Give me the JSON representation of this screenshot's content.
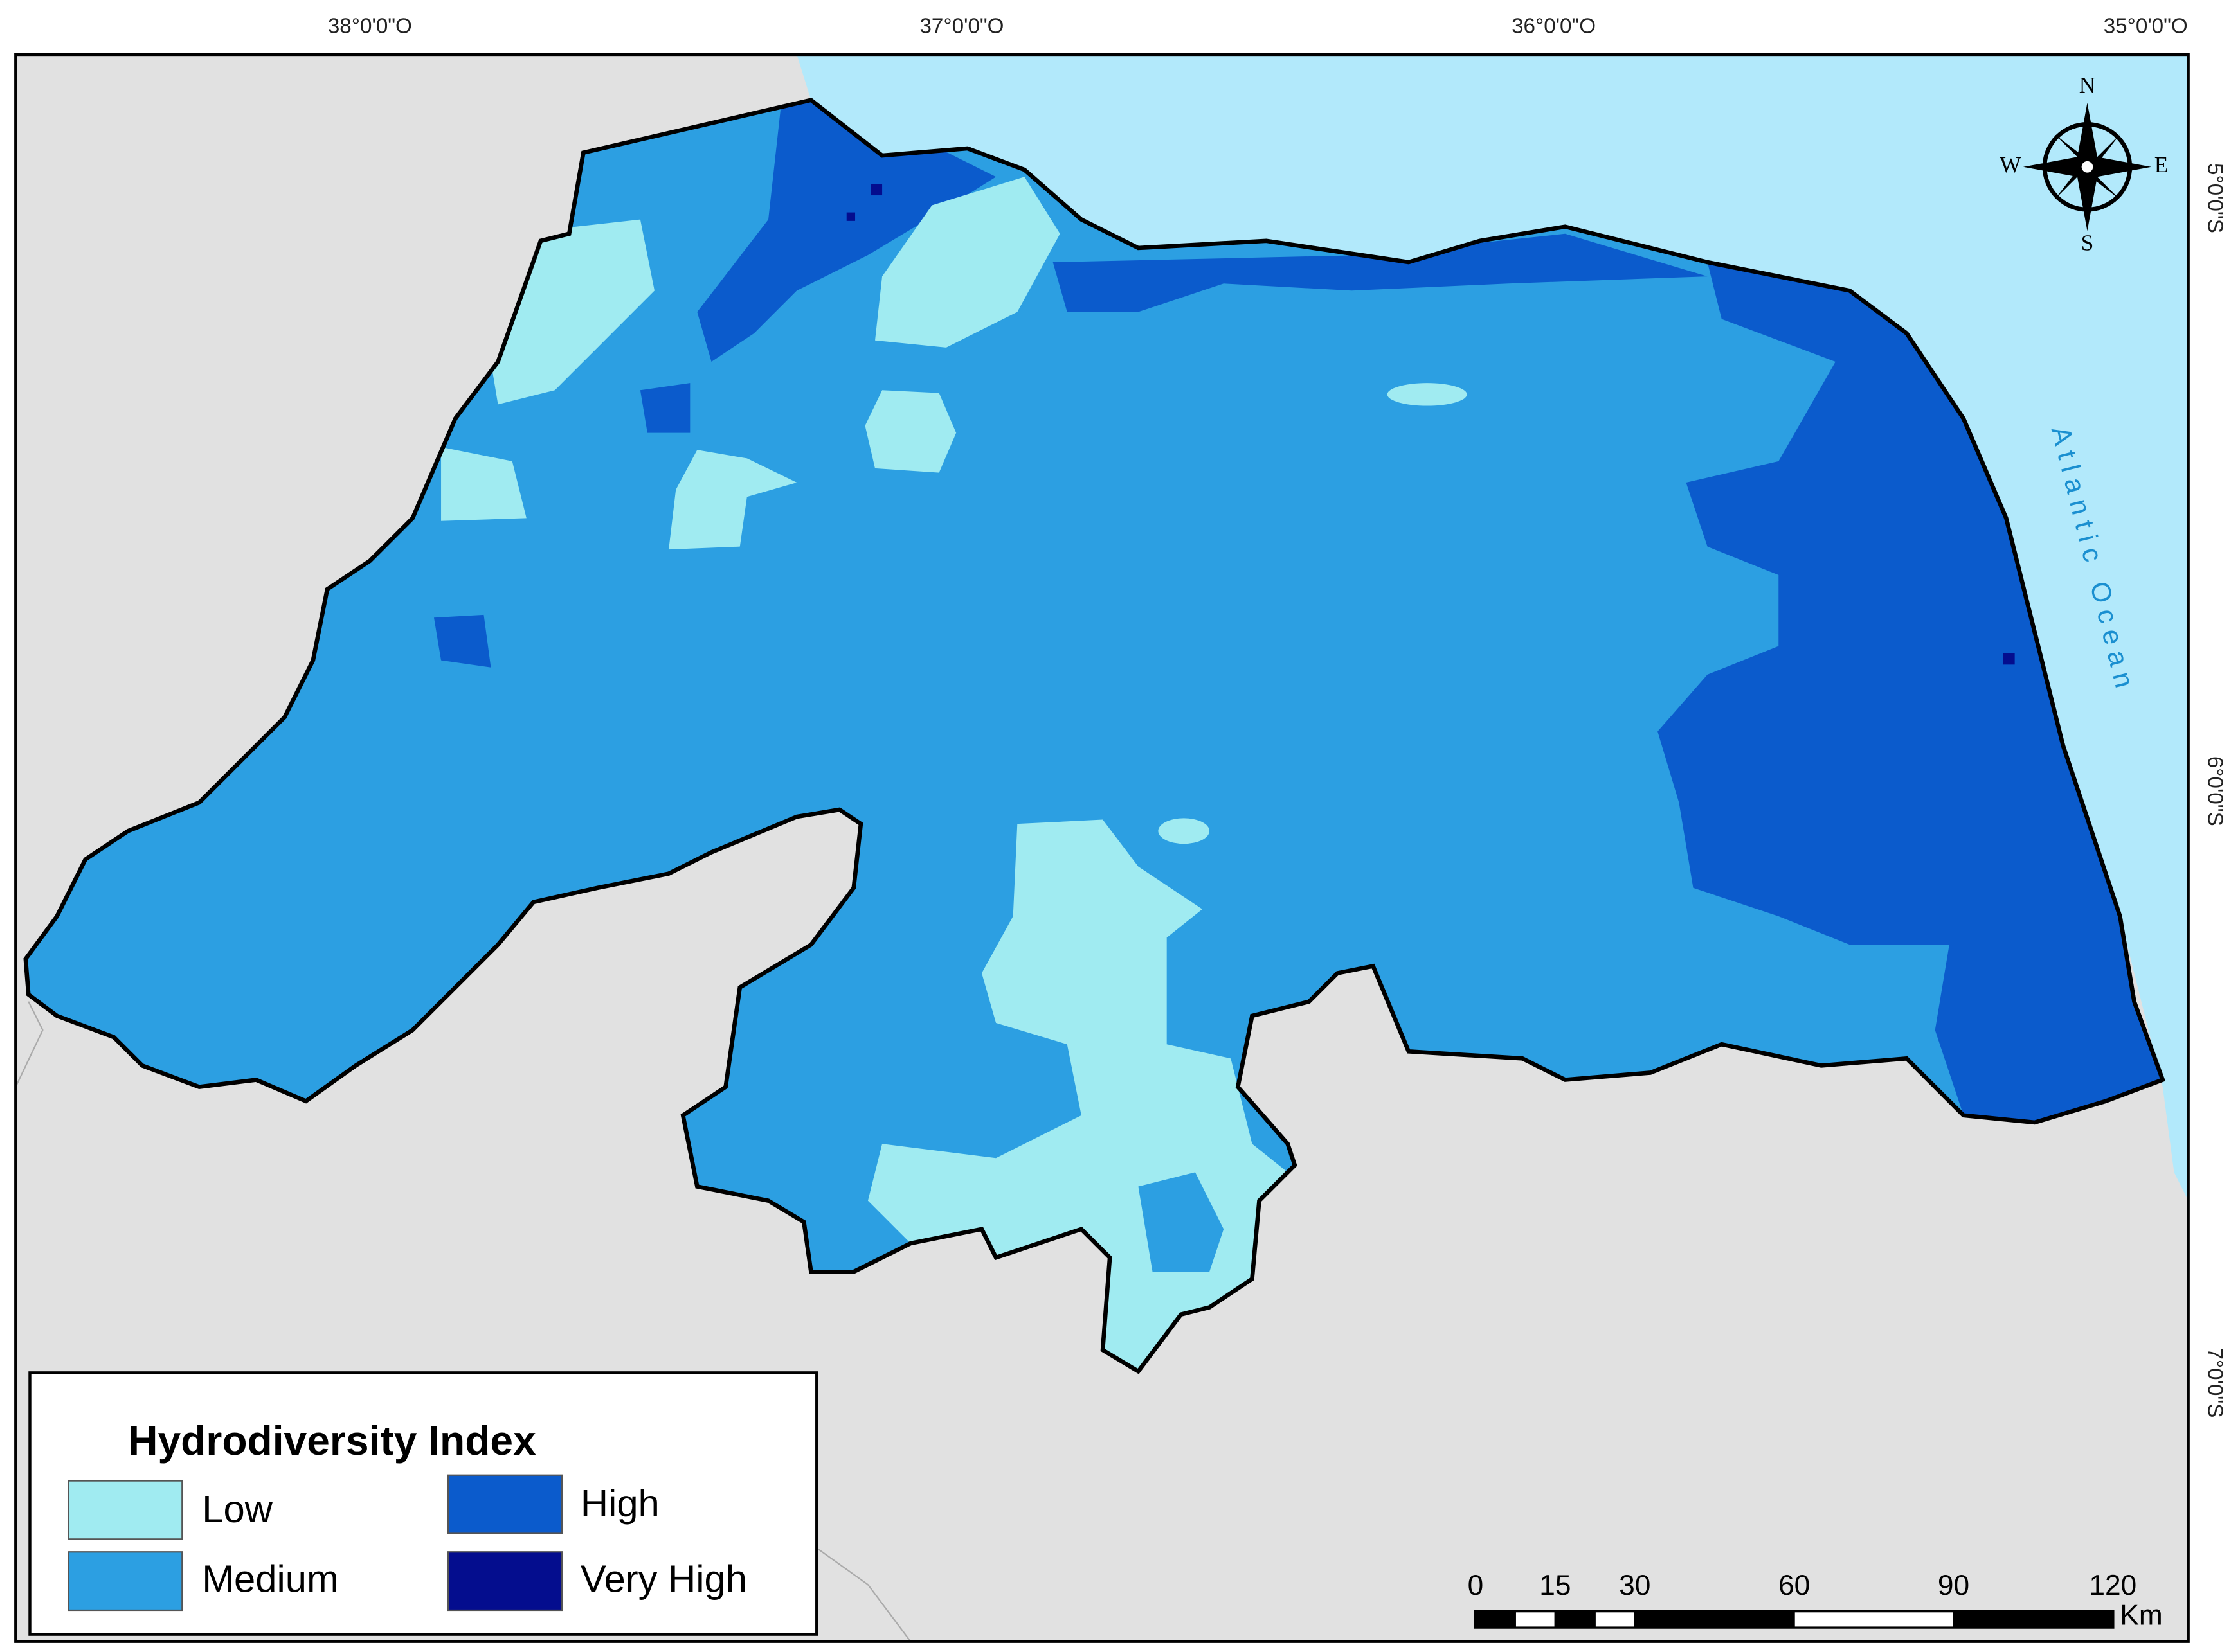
{
  "map": {
    "longitude_labels": [
      "38°0'0\"O",
      "37°0'0\"O",
      "36°0'0\"O",
      "35°0'0\"O"
    ],
    "latitude_labels": [
      "5°0'0\"S",
      "6°0'0\"S",
      "7°0'0\"S"
    ],
    "compass": {
      "n": "N",
      "s": "S",
      "e": "E",
      "w": "W"
    },
    "ocean_label": "Atlantic Ocean",
    "legend": {
      "title": "Hydrodiversity Index",
      "items": [
        {
          "label": "Low",
          "color": "#a0ebf1"
        },
        {
          "label": "Medium",
          "color": "#2c9fe2"
        },
        {
          "label": "High",
          "color": "#0b5bcc"
        },
        {
          "label": "Very High",
          "color": "#040d8e"
        }
      ]
    },
    "scale_bar": {
      "ticks": [
        0,
        15,
        30,
        60,
        90,
        120
      ],
      "unit": "Km"
    }
  }
}
